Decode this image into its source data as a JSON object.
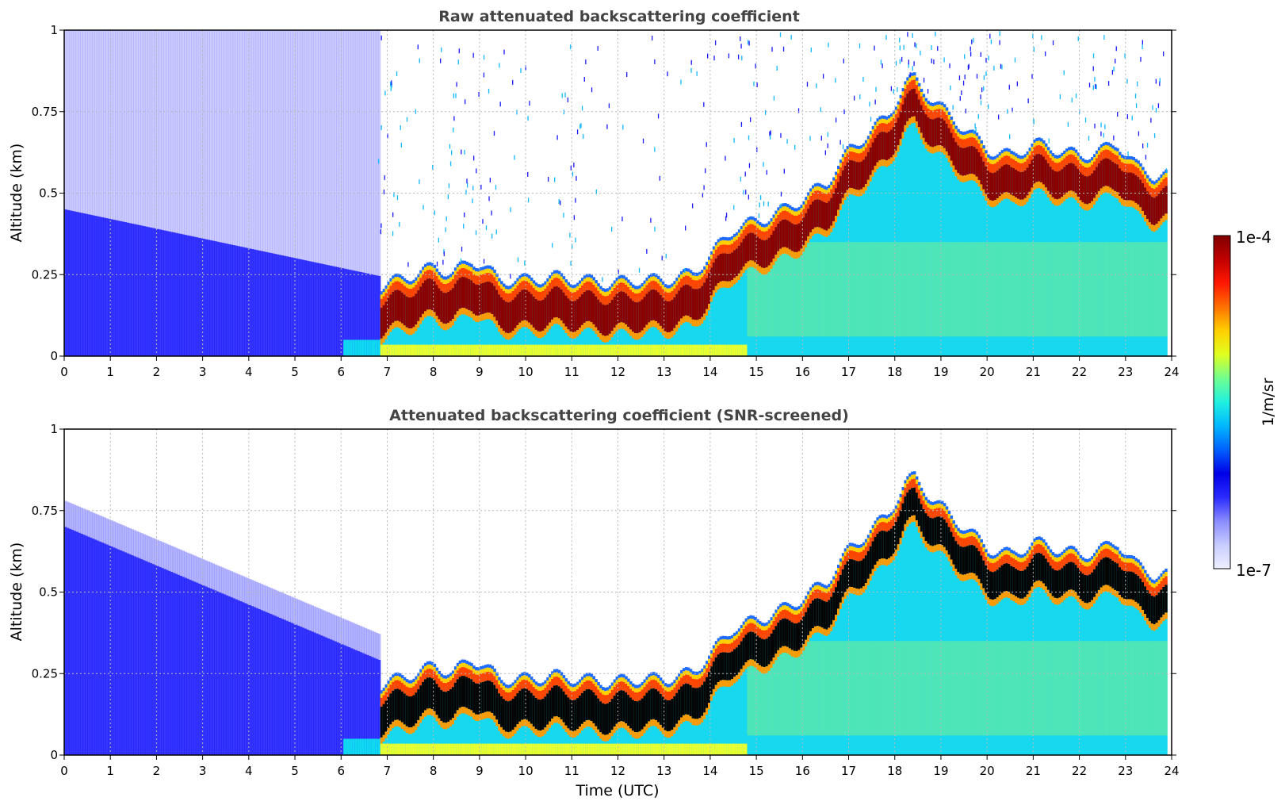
{
  "chart_data": [
    {
      "type": "heatmap",
      "title": "Raw attenuated backscattering coefficient",
      "xlabel": "",
      "ylabel": "Altitude (km)",
      "xlim": [
        0,
        24
      ],
      "ylim": [
        0,
        1
      ],
      "xticks": [
        "0",
        "1",
        "2",
        "3",
        "4",
        "5",
        "6",
        "7",
        "8",
        "9",
        "10",
        "11",
        "12",
        "13",
        "14",
        "15",
        "16",
        "17",
        "18",
        "19",
        "20",
        "21",
        "22",
        "23",
        "24"
      ],
      "yticks": [
        {
          "value": 0,
          "label": "0"
        },
        {
          "value": 0.25,
          "label": "0.25"
        },
        {
          "value": 0.5,
          "label": "0.5"
        },
        {
          "value": 0.75,
          "label": "0.75"
        },
        {
          "value": 1,
          "label": "1"
        }
      ],
      "grid": true,
      "screened": false
    },
    {
      "type": "heatmap",
      "title": "Attenuated backscattering coefficient (SNR-screened)",
      "xlabel": "Time (UTC)",
      "ylabel": "Altitude (km)",
      "xlim": [
        0,
        24
      ],
      "ylim": [
        0,
        1
      ],
      "xticks": [
        "0",
        "1",
        "2",
        "3",
        "4",
        "5",
        "6",
        "7",
        "8",
        "9",
        "10",
        "11",
        "12",
        "13",
        "14",
        "15",
        "16",
        "17",
        "18",
        "19",
        "20",
        "21",
        "22",
        "23",
        "24"
      ],
      "yticks": [
        {
          "value": 0,
          "label": "0"
        },
        {
          "value": 0.25,
          "label": "0.25"
        },
        {
          "value": 0.5,
          "label": "0.5"
        },
        {
          "value": 0.75,
          "label": "0.75"
        },
        {
          "value": 1,
          "label": "1"
        }
      ],
      "grid": true,
      "screened": true
    }
  ],
  "colorbar": {
    "label": "1/m/sr",
    "max_label": "1e-4",
    "min_label": "1e-7",
    "scale": "log",
    "colors": [
      "#eef0ff",
      "#c8ccff",
      "#8a8cff",
      "#2b2bff",
      "#0000e6",
      "#0060ff",
      "#00b8ff",
      "#20f0e0",
      "#70ff90",
      "#e0ff20",
      "#ffd000",
      "#ff7000",
      "#ff1800",
      "#c00000",
      "#800000"
    ]
  },
  "boundary_layer_top_km": [
    [
      6.8,
      0.18
    ],
    [
      7.2,
      0.2
    ],
    [
      7.6,
      0.22
    ],
    [
      8.0,
      0.24
    ],
    [
      8.4,
      0.22
    ],
    [
      8.8,
      0.26
    ],
    [
      9.0,
      0.25
    ],
    [
      9.4,
      0.2
    ],
    [
      10,
      0.2
    ],
    [
      10.6,
      0.21
    ],
    [
      11.2,
      0.2
    ],
    [
      11.8,
      0.19
    ],
    [
      12.4,
      0.2
    ],
    [
      13.0,
      0.2
    ],
    [
      13.6,
      0.22
    ],
    [
      14.0,
      0.28
    ],
    [
      14.5,
      0.36
    ],
    [
      15.0,
      0.38
    ],
    [
      15.5,
      0.41
    ],
    [
      16.0,
      0.45
    ],
    [
      16.5,
      0.5
    ],
    [
      17.0,
      0.6
    ],
    [
      17.4,
      0.65
    ],
    [
      17.8,
      0.7
    ],
    [
      18.2,
      0.8
    ],
    [
      18.4,
      0.82
    ],
    [
      18.8,
      0.75
    ],
    [
      19.2,
      0.7
    ],
    [
      19.6,
      0.65
    ],
    [
      20.0,
      0.6
    ],
    [
      20.5,
      0.58
    ],
    [
      21.0,
      0.62
    ],
    [
      21.5,
      0.6
    ],
    [
      22.0,
      0.58
    ],
    [
      22.5,
      0.6
    ],
    [
      22.8,
      0.62
    ],
    [
      23.2,
      0.55
    ],
    [
      23.6,
      0.52
    ],
    [
      23.9,
      0.52
    ]
  ]
}
